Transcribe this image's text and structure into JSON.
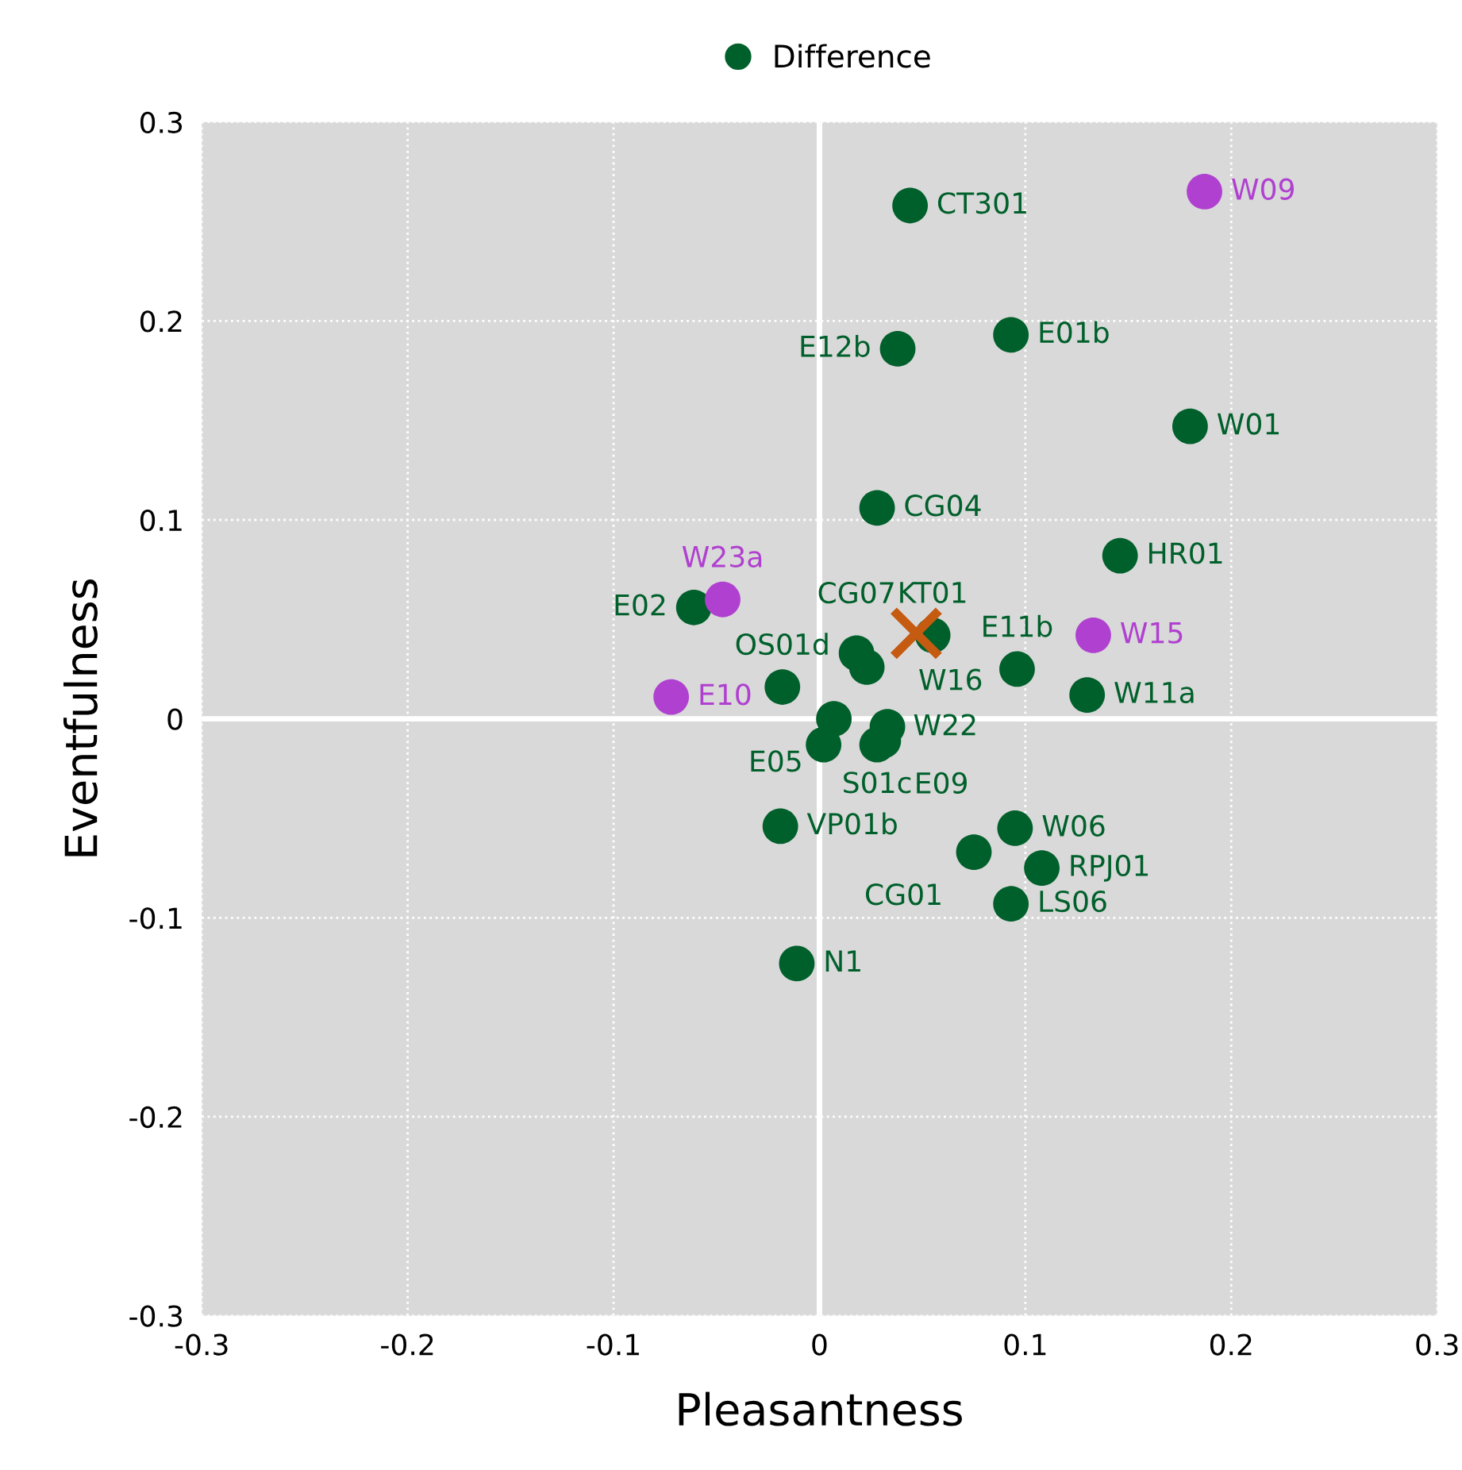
{
  "chart_data": {
    "type": "scatter",
    "xlabel": "Pleasantness",
    "ylabel": "Eventfulness",
    "xlim": [
      -0.3,
      0.3
    ],
    "ylim": [
      -0.3,
      0.3
    ],
    "xticks": [
      -0.3,
      -0.2,
      -0.1,
      0,
      0.1,
      0.2,
      0.3
    ],
    "yticks": [
      -0.3,
      -0.2,
      -0.1,
      0,
      0.1,
      0.2,
      0.3
    ],
    "grid": true,
    "legend": "top",
    "marker": "circle",
    "series": [
      {
        "name": "Difference",
        "color": "#00602b",
        "x": [
          0.044,
          0.093,
          0.038,
          0.18,
          0.028,
          0.146,
          -0.061,
          0.055,
          0.018,
          0.023,
          0.096,
          0.13,
          -0.018,
          0.007,
          0.002,
          0.033,
          0.028,
          0.031,
          -0.019,
          0.095,
          0.075,
          0.108,
          0.093,
          -0.011
        ],
        "values": [
          0.258,
          0.193,
          0.186,
          0.147,
          0.106,
          0.082,
          0.056,
          0.042,
          0.033,
          0.026,
          0.025,
          0.012,
          0.016,
          0.0,
          -0.013,
          -0.004,
          -0.013,
          -0.011,
          -0.054,
          -0.055,
          -0.067,
          -0.075,
          -0.093,
          -0.123
        ]
      },
      {
        "color": "#b040d0",
        "x": [
          0.187,
          -0.047,
          0.133,
          -0.072
        ],
        "values": [
          0.265,
          0.06,
          0.042,
          0.011
        ]
      },
      {
        "color": "#c55a11",
        "marker": "cross",
        "x": [
          0.047
        ],
        "values": [
          0.043
        ]
      }
    ],
    "annotations": [
      {
        "text": "CT301",
        "x": 0.044,
        "y": 0.258
      },
      {
        "text": "E01b",
        "x": 0.093,
        "y": 0.193
      },
      {
        "text": "E12b",
        "x": 0.038,
        "y": 0.186
      },
      {
        "text": "W01",
        "x": 0.18,
        "y": 0.147
      },
      {
        "text": "CG04",
        "x": 0.028,
        "y": 0.106
      },
      {
        "text": "HR01",
        "x": 0.146,
        "y": 0.082
      },
      {
        "text": "E02",
        "x": -0.061,
        "y": 0.056
      },
      {
        "text": "KT01",
        "x": 0.055,
        "y": 0.042
      },
      {
        "text": "CG07",
        "x": 0.018,
        "y": 0.033
      },
      {
        "text": "W22",
        "x": 0.023,
        "y": 0.026
      },
      {
        "text": "E11b",
        "x": 0.096,
        "y": 0.025
      },
      {
        "text": "W11a",
        "x": 0.13,
        "y": 0.012
      },
      {
        "text": "OS01d",
        "x": -0.018,
        "y": 0.016
      },
      {
        "text": "E05",
        "x": 0.007,
        "y": 0.0
      },
      {
        "text": "W16",
        "x": 0.033,
        "y": -0.004
      },
      {
        "text": "S01c",
        "x": 0.028,
        "y": -0.013
      },
      {
        "text": "E09",
        "x": 0.031,
        "y": -0.011
      },
      {
        "text": "VP01b",
        "x": -0.019,
        "y": -0.054
      },
      {
        "text": "W06",
        "x": 0.095,
        "y": -0.055
      },
      {
        "text": "CG01",
        "x": 0.075,
        "y": -0.067
      },
      {
        "text": "RPJ01",
        "x": 0.108,
        "y": -0.075
      },
      {
        "text": "LS06",
        "x": 0.093,
        "y": -0.093
      },
      {
        "text": "N1",
        "x": -0.011,
        "y": -0.123
      },
      {
        "text": "W09",
        "x": 0.187,
        "y": 0.265
      },
      {
        "text": "W23a",
        "x": -0.047,
        "y": 0.06
      },
      {
        "text": "W15",
        "x": 0.133,
        "y": 0.042
      },
      {
        "text": "E10",
        "x": -0.072,
        "y": 0.011
      }
    ]
  }
}
